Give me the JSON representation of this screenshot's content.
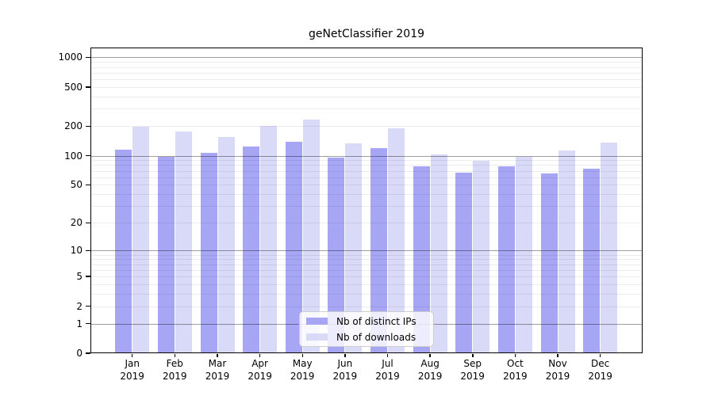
{
  "chart_data": {
    "type": "bar",
    "title": "geNetClassifier 2019",
    "categories": [
      "Jan",
      "Feb",
      "Mar",
      "Apr",
      "May",
      "Jun",
      "Jul",
      "Aug",
      "Sep",
      "Oct",
      "Nov",
      "Dec"
    ],
    "year_label": "2019",
    "series": [
      {
        "name": "Nb of distinct IPs",
        "color": "#a6a6f4",
        "values": [
          114,
          97,
          107,
          124,
          138,
          95,
          119,
          78,
          67,
          78,
          66,
          74
        ]
      },
      {
        "name": "Nb of downloads",
        "color": "#d9d9f8",
        "values": [
          197,
          178,
          155,
          200,
          233,
          134,
          191,
          103,
          88,
          98,
          112,
          135
        ]
      }
    ],
    "xlabel": "",
    "ylabel": "",
    "y_axis": {
      "scale": "log1p",
      "ylim": [
        0,
        1000
      ],
      "ticks": [
        0,
        1,
        2,
        5,
        10,
        20,
        50,
        100,
        200,
        500,
        1000
      ],
      "major_gridlines": [
        1,
        10,
        100,
        1000
      ],
      "minor_gridlines": [
        2,
        3,
        4,
        5,
        6,
        7,
        8,
        9,
        20,
        30,
        40,
        50,
        60,
        70,
        80,
        90,
        200,
        300,
        400,
        500,
        600,
        700,
        800,
        900
      ]
    },
    "legend_position": "bottom-center",
    "grid": "on"
  }
}
